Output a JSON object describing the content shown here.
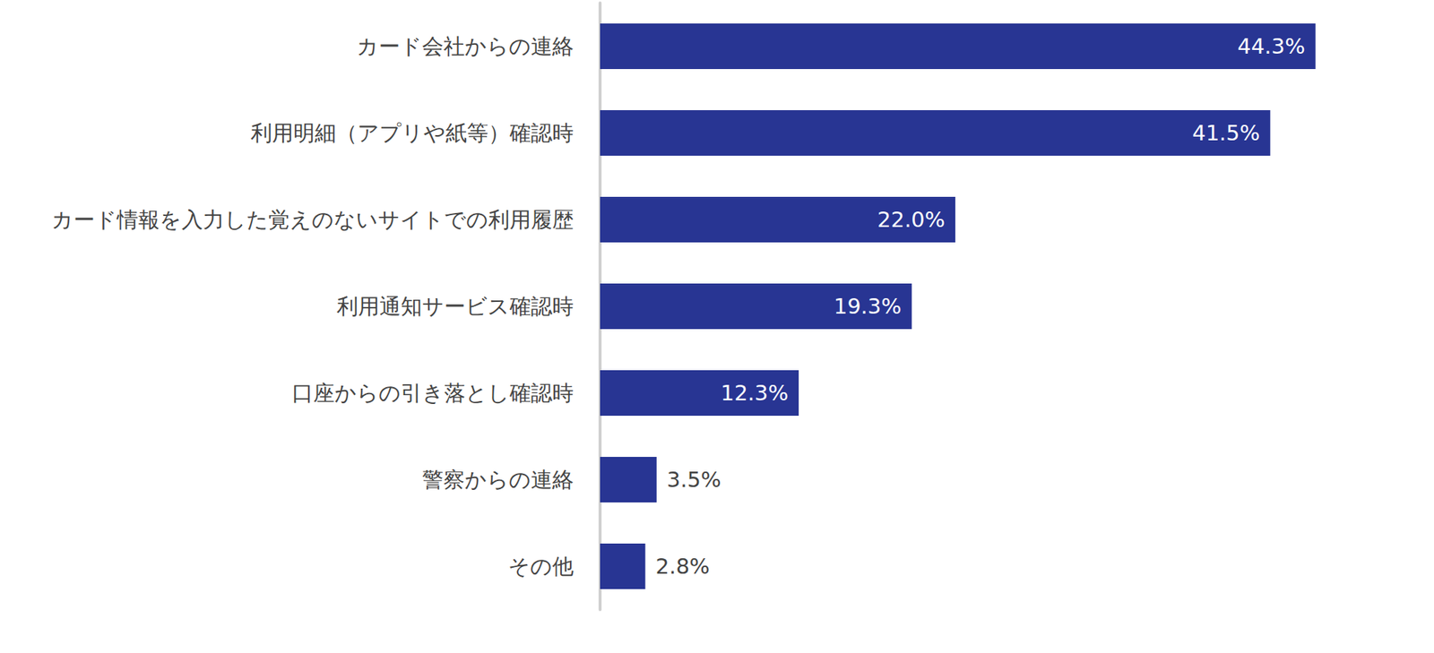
{
  "chart_data": {
    "type": "bar",
    "orientation": "horizontal",
    "categories": [
      "カード会社からの連絡",
      "利用明細（アプリや紙等）確認時",
      "カード情報を入力した覚えのないサイトでの利用履歴",
      "利用通知サービス確認時",
      "口座からの引き落とし確認時",
      "警察からの連絡",
      "その他"
    ],
    "values": [
      44.3,
      41.5,
      22.0,
      19.3,
      12.3,
      3.5,
      2.8
    ],
    "value_labels": [
      "44.3%",
      "41.5%",
      "22.0%",
      "19.3%",
      "12.3%",
      "3.5%",
      "2.8%"
    ],
    "color": "#283593",
    "xlim": [
      0,
      50
    ],
    "grid": false,
    "data_labels": true,
    "tick_labels": "y"
  }
}
